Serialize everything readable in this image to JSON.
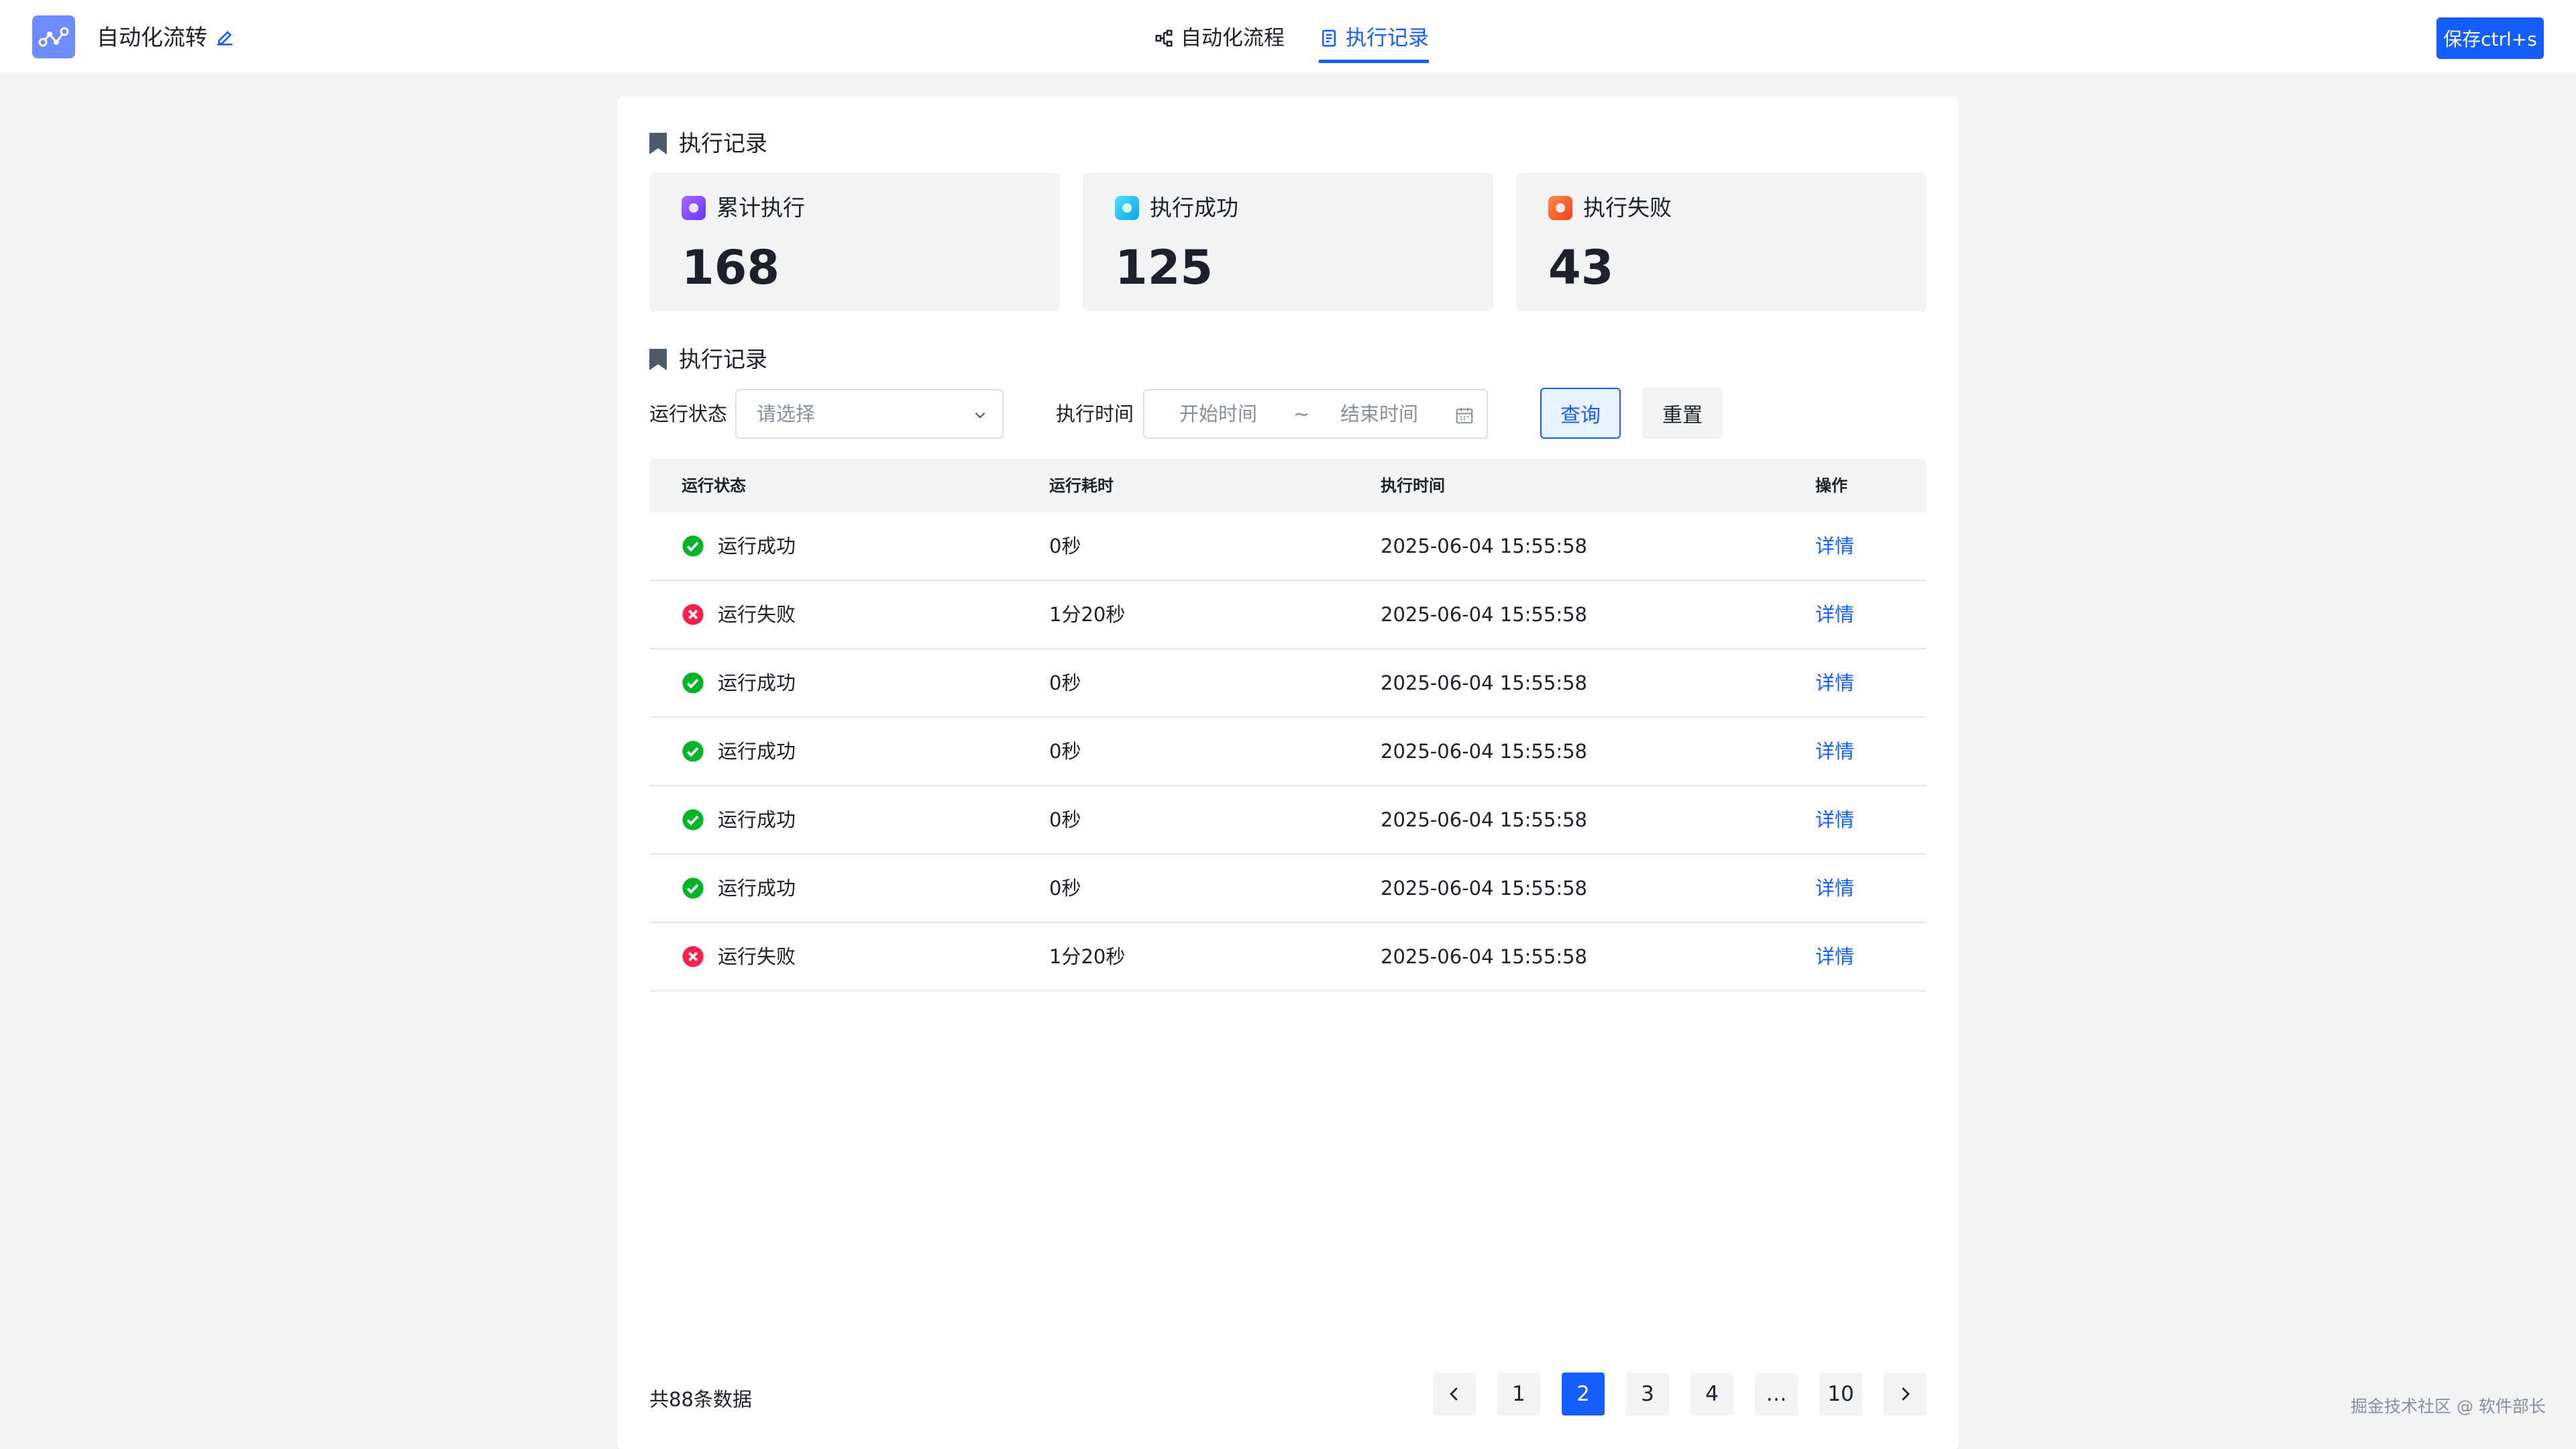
{
  "header": {
    "app_title": "自动化流转",
    "tabs": [
      {
        "label": "自动化流程",
        "icon": "flow-icon"
      },
      {
        "label": "执行记录",
        "icon": "document-icon",
        "active": true
      }
    ],
    "save_label": "保存ctrl+s"
  },
  "summary": {
    "title": "执行记录",
    "stats": [
      {
        "label": "累计执行",
        "value": "168",
        "color": "#7b4dff"
      },
      {
        "label": "执行成功",
        "value": "125",
        "color": "#14c9f5"
      },
      {
        "label": "执行失败",
        "value": "43",
        "color": "#ff5a26"
      }
    ]
  },
  "records": {
    "title": "执行记录",
    "filters": {
      "status_label": "运行状态",
      "status_placeholder": "请选择",
      "time_label": "执行时间",
      "start_placeholder": "开始时间",
      "range_separator": "~",
      "end_placeholder": "结束时间",
      "query_label": "查询",
      "reset_label": "重置"
    },
    "columns": [
      "运行状态",
      "运行耗时",
      "执行时间",
      "操作"
    ],
    "rows": [
      {
        "status": "运行成功",
        "ok": true,
        "duration": "0秒",
        "time": "2025-06-04 15:55:58",
        "action": "详情"
      },
      {
        "status": "运行失败",
        "ok": false,
        "duration": "1分20秒",
        "time": "2025-06-04 15:55:58",
        "action": "详情"
      },
      {
        "status": "运行成功",
        "ok": true,
        "duration": "0秒",
        "time": "2025-06-04 15:55:58",
        "action": "详情"
      },
      {
        "status": "运行成功",
        "ok": true,
        "duration": "0秒",
        "time": "2025-06-04 15:55:58",
        "action": "详情"
      },
      {
        "status": "运行成功",
        "ok": true,
        "duration": "0秒",
        "time": "2025-06-04 15:55:58",
        "action": "详情"
      },
      {
        "status": "运行成功",
        "ok": true,
        "duration": "0秒",
        "time": "2025-06-04 15:55:58",
        "action": "详情"
      },
      {
        "status": "运行失败",
        "ok": false,
        "duration": "1分20秒",
        "time": "2025-06-04 15:55:58",
        "action": "详情"
      }
    ],
    "total_text": "共88条数据",
    "pagination": {
      "pages": [
        "1",
        "2",
        "3",
        "4",
        "…",
        "10"
      ],
      "current": "2"
    }
  },
  "watermark": "掘金技术社区 @ 软件部长",
  "colors": {
    "primary": "#165dff",
    "success": "#00b42a",
    "danger": "#f53f3f"
  }
}
